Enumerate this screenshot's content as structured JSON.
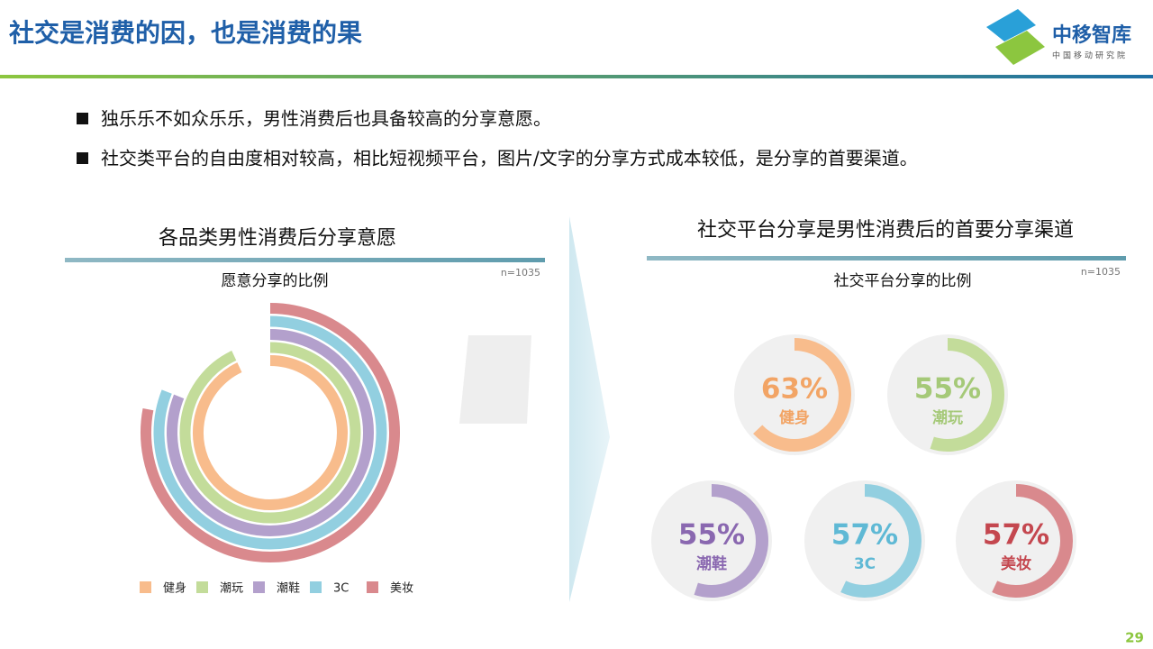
{
  "header": {
    "title": "社交是消费的因，也是消费的果",
    "logo_name": "中移智库",
    "logo_sub": "中国移动研究院",
    "page_number": "29"
  },
  "bullets": [
    "独乐乐不如众乐乐，男性消费后也具备较高的分享意愿。",
    "社交类平台的自由度相对较高，相比短视频平台，图片/文字的分享方式成本较低，是分享的首要渠道。"
  ],
  "chart_data": [
    {
      "type": "radial_bar",
      "title": "各品类男性消费后分享意愿",
      "subtitle": "愿意分享的比例",
      "note": "n=1035",
      "categories": [
        "健身",
        "潮玩",
        "潮鞋",
        "3C",
        "美妆"
      ],
      "values": [
        93,
        93,
        81,
        81,
        78
      ],
      "colors": [
        "#f8bc8c",
        "#c3dc9a",
        "#b3a0cc",
        "#92cfe0",
        "#d9898d"
      ],
      "lim": [
        0,
        100
      ]
    },
    {
      "type": "gauge",
      "title": "社交平台分享是男性消费后的首要分享渠道",
      "subtitle": "社交平台分享的比例",
      "note": "n=1035",
      "categories": [
        "健身",
        "潮玩",
        "潮鞋",
        "3C",
        "美妆"
      ],
      "values": [
        63,
        55,
        55,
        57,
        57
      ],
      "value_labels": [
        "63%",
        "55%",
        "55%",
        "57%",
        "57%"
      ],
      "colors": [
        "#f8bc8c",
        "#c3dc9a",
        "#b3a0cc",
        "#92cfe0",
        "#d9898d"
      ],
      "text_colors": [
        "#f2a465",
        "#a5c978",
        "#8a68b0",
        "#5fb9d5",
        "#c4474f"
      ],
      "lim": [
        0,
        100
      ]
    }
  ]
}
